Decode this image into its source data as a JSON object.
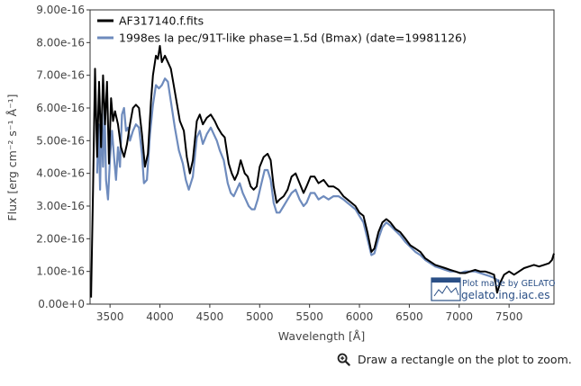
{
  "chart_data": {
    "type": "line",
    "xlabel": "Wavelength [Å]",
    "ylabel": "Flux [erg cm⁻² s⁻¹ Å⁻¹]",
    "xlim": [
      3300,
      7950
    ],
    "ylim": [
      0,
      9e-16
    ],
    "xticks": [
      3500,
      4000,
      4500,
      5000,
      5500,
      6000,
      6500,
      7000,
      7500
    ],
    "yticks": [
      0,
      1e-16,
      2e-16,
      3e-16,
      4e-16,
      5e-16,
      6e-16,
      7e-16,
      8e-16,
      9e-16
    ],
    "ytick_labels": [
      "0.00e+0",
      "1.00e-16",
      "2.00e-16",
      "3.00e-16",
      "4.00e-16",
      "5.00e-16",
      "6.00e-16",
      "7.00e-16",
      "8.00e-16",
      "9.00e-16"
    ],
    "grid": false,
    "legend_position": "top-left",
    "series": [
      {
        "name": "AF317140.f.fits",
        "color": "#000000",
        "points": [
          [
            3310,
            2e-17
          ],
          [
            3330,
            3.5e-16
          ],
          [
            3350,
            7.2e-16
          ],
          [
            3370,
            4.5e-16
          ],
          [
            3390,
            6.8e-16
          ],
          [
            3410,
            4.8e-16
          ],
          [
            3430,
            7e-16
          ],
          [
            3450,
            5.5e-16
          ],
          [
            3470,
            6.8e-16
          ],
          [
            3490,
            4.3e-16
          ],
          [
            3510,
            6.3e-16
          ],
          [
            3530,
            5.6e-16
          ],
          [
            3550,
            5.9e-16
          ],
          [
            3580,
            5.5e-16
          ],
          [
            3610,
            4.8e-16
          ],
          [
            3640,
            4.5e-16
          ],
          [
            3670,
            4.9e-16
          ],
          [
            3700,
            5.5e-16
          ],
          [
            3730,
            6e-16
          ],
          [
            3760,
            6.1e-16
          ],
          [
            3790,
            6e-16
          ],
          [
            3820,
            5.2e-16
          ],
          [
            3850,
            4.2e-16
          ],
          [
            3880,
            4.6e-16
          ],
          [
            3910,
            6.2e-16
          ],
          [
            3930,
            7e-16
          ],
          [
            3960,
            7.6e-16
          ],
          [
            3980,
            7.5e-16
          ],
          [
            4000,
            7.9e-16
          ],
          [
            4020,
            7.4e-16
          ],
          [
            4050,
            7.6e-16
          ],
          [
            4080,
            7.4e-16
          ],
          [
            4110,
            7.2e-16
          ],
          [
            4150,
            6.5e-16
          ],
          [
            4200,
            5.6e-16
          ],
          [
            4240,
            5.3e-16
          ],
          [
            4270,
            4.5e-16
          ],
          [
            4300,
            4e-16
          ],
          [
            4330,
            4.4e-16
          ],
          [
            4370,
            5.6e-16
          ],
          [
            4400,
            5.8e-16
          ],
          [
            4430,
            5.5e-16
          ],
          [
            4470,
            5.7e-16
          ],
          [
            4510,
            5.8e-16
          ],
          [
            4550,
            5.6e-16
          ],
          [
            4580,
            5.4e-16
          ],
          [
            4620,
            5.2e-16
          ],
          [
            4650,
            5.1e-16
          ],
          [
            4690,
            4.3e-16
          ],
          [
            4720,
            4e-16
          ],
          [
            4750,
            3.8e-16
          ],
          [
            4780,
            4e-16
          ],
          [
            4810,
            4.4e-16
          ],
          [
            4850,
            4e-16
          ],
          [
            4880,
            3.9e-16
          ],
          [
            4910,
            3.6e-16
          ],
          [
            4940,
            3.5e-16
          ],
          [
            4970,
            3.6e-16
          ],
          [
            5000,
            4.2e-16
          ],
          [
            5040,
            4.5e-16
          ],
          [
            5080,
            4.6e-16
          ],
          [
            5110,
            4.4e-16
          ],
          [
            5140,
            3.6e-16
          ],
          [
            5170,
            3.1e-16
          ],
          [
            5200,
            3.2e-16
          ],
          [
            5240,
            3.3e-16
          ],
          [
            5280,
            3.5e-16
          ],
          [
            5320,
            3.9e-16
          ],
          [
            5360,
            4e-16
          ],
          [
            5400,
            3.7e-16
          ],
          [
            5440,
            3.4e-16
          ],
          [
            5470,
            3.6e-16
          ],
          [
            5510,
            3.9e-16
          ],
          [
            5550,
            3.9e-16
          ],
          [
            5590,
            3.7e-16
          ],
          [
            5640,
            3.8e-16
          ],
          [
            5690,
            3.6e-16
          ],
          [
            5740,
            3.6e-16
          ],
          [
            5790,
            3.5e-16
          ],
          [
            5840,
            3.3e-16
          ],
          [
            5880,
            3.2e-16
          ],
          [
            5920,
            3.1e-16
          ],
          [
            5960,
            3e-16
          ],
          [
            6000,
            2.8e-16
          ],
          [
            6040,
            2.7e-16
          ],
          [
            6080,
            2.2e-16
          ],
          [
            6120,
            1.6e-16
          ],
          [
            6150,
            1.7e-16
          ],
          [
            6190,
            2.2e-16
          ],
          [
            6230,
            2.5e-16
          ],
          [
            6270,
            2.6e-16
          ],
          [
            6310,
            2.5e-16
          ],
          [
            6360,
            2.3e-16
          ],
          [
            6410,
            2.2e-16
          ],
          [
            6460,
            2e-16
          ],
          [
            6510,
            1.8e-16
          ],
          [
            6560,
            1.7e-16
          ],
          [
            6610,
            1.6e-16
          ],
          [
            6660,
            1.4e-16
          ],
          [
            6710,
            1.3e-16
          ],
          [
            6760,
            1.2e-16
          ],
          [
            6810,
            1.15e-16
          ],
          [
            6860,
            1.1e-16
          ],
          [
            6910,
            1.05e-16
          ],
          [
            6960,
            1e-16
          ],
          [
            7010,
            9.5e-17
          ],
          [
            7060,
            9.5e-17
          ],
          [
            7110,
            1e-16
          ],
          [
            7160,
            1.05e-16
          ],
          [
            7210,
            1e-16
          ],
          [
            7260,
            1e-16
          ],
          [
            7310,
            9.5e-17
          ],
          [
            7350,
            9e-17
          ],
          [
            7380,
            3.5e-17
          ],
          [
            7410,
            6.5e-17
          ],
          [
            7450,
            9e-17
          ],
          [
            7500,
            1e-16
          ],
          [
            7550,
            9e-17
          ],
          [
            7600,
            1e-16
          ],
          [
            7650,
            1.1e-16
          ],
          [
            7700,
            1.15e-16
          ],
          [
            7750,
            1.2e-16
          ],
          [
            7800,
            1.15e-16
          ],
          [
            7850,
            1.2e-16
          ],
          [
            7900,
            1.25e-16
          ],
          [
            7930,
            1.35e-16
          ],
          [
            7950,
            1.55e-16
          ]
        ]
      },
      {
        "name": "1998es  Ia pec/91T-like  phase=1.5d (Bmax)  (date=19981126)",
        "color": "#6e8bbd",
        "points": [
          [
            3370,
            4e-16
          ],
          [
            3385,
            5.5e-16
          ],
          [
            3400,
            3.5e-16
          ],
          [
            3415,
            5.8e-16
          ],
          [
            3430,
            4.2e-16
          ],
          [
            3445,
            6.1e-16
          ],
          [
            3460,
            3.8e-16
          ],
          [
            3480,
            3.2e-16
          ],
          [
            3500,
            4.5e-16
          ],
          [
            3520,
            5.3e-16
          ],
          [
            3540,
            4.5e-16
          ],
          [
            3560,
            3.8e-16
          ],
          [
            3580,
            4.8e-16
          ],
          [
            3600,
            4.2e-16
          ],
          [
            3620,
            5.8e-16
          ],
          [
            3640,
            6e-16
          ],
          [
            3660,
            5.3e-16
          ],
          [
            3680,
            5.4e-16
          ],
          [
            3700,
            5e-16
          ],
          [
            3730,
            5.3e-16
          ],
          [
            3760,
            5.5e-16
          ],
          [
            3790,
            5.4e-16
          ],
          [
            3820,
            4.6e-16
          ],
          [
            3840,
            3.7e-16
          ],
          [
            3870,
            3.8e-16
          ],
          [
            3900,
            5.2e-16
          ],
          [
            3930,
            6.1e-16
          ],
          [
            3960,
            6.7e-16
          ],
          [
            3990,
            6.6e-16
          ],
          [
            4020,
            6.7e-16
          ],
          [
            4050,
            6.9e-16
          ],
          [
            4080,
            6.8e-16
          ],
          [
            4110,
            6.2e-16
          ],
          [
            4150,
            5.4e-16
          ],
          [
            4190,
            4.7e-16
          ],
          [
            4230,
            4.3e-16
          ],
          [
            4260,
            3.8e-16
          ],
          [
            4290,
            3.5e-16
          ],
          [
            4330,
            3.9e-16
          ],
          [
            4370,
            5.1e-16
          ],
          [
            4400,
            5.3e-16
          ],
          [
            4430,
            4.9e-16
          ],
          [
            4470,
            5.2e-16
          ],
          [
            4510,
            5.4e-16
          ],
          [
            4540,
            5.2e-16
          ],
          [
            4570,
            5e-16
          ],
          [
            4600,
            4.7e-16
          ],
          [
            4640,
            4.4e-16
          ],
          [
            4680,
            3.7e-16
          ],
          [
            4710,
            3.4e-16
          ],
          [
            4740,
            3.3e-16
          ],
          [
            4770,
            3.5e-16
          ],
          [
            4800,
            3.7e-16
          ],
          [
            4830,
            3.4e-16
          ],
          [
            4860,
            3.2e-16
          ],
          [
            4890,
            3e-16
          ],
          [
            4920,
            2.9e-16
          ],
          [
            4950,
            2.9e-16
          ],
          [
            4980,
            3.2e-16
          ],
          [
            5010,
            3.6e-16
          ],
          [
            5050,
            4.1e-16
          ],
          [
            5080,
            4.1e-16
          ],
          [
            5110,
            3.8e-16
          ],
          [
            5140,
            3.1e-16
          ],
          [
            5170,
            2.8e-16
          ],
          [
            5200,
            2.8e-16
          ],
          [
            5240,
            3e-16
          ],
          [
            5280,
            3.2e-16
          ],
          [
            5320,
            3.4e-16
          ],
          [
            5360,
            3.5e-16
          ],
          [
            5400,
            3.2e-16
          ],
          [
            5440,
            3e-16
          ],
          [
            5470,
            3.1e-16
          ],
          [
            5510,
            3.4e-16
          ],
          [
            5550,
            3.4e-16
          ],
          [
            5590,
            3.2e-16
          ],
          [
            5640,
            3.3e-16
          ],
          [
            5690,
            3.2e-16
          ],
          [
            5740,
            3.3e-16
          ],
          [
            5790,
            3.3e-16
          ],
          [
            5840,
            3.2e-16
          ],
          [
            5880,
            3.1e-16
          ],
          [
            5920,
            3e-16
          ],
          [
            5960,
            2.9e-16
          ],
          [
            6000,
            2.7e-16
          ],
          [
            6040,
            2.5e-16
          ],
          [
            6080,
            2e-16
          ],
          [
            6120,
            1.5e-16
          ],
          [
            6150,
            1.55e-16
          ],
          [
            6190,
            2e-16
          ],
          [
            6230,
            2.35e-16
          ],
          [
            6270,
            2.5e-16
          ],
          [
            6310,
            2.4e-16
          ],
          [
            6360,
            2.25e-16
          ],
          [
            6410,
            2.1e-16
          ],
          [
            6460,
            1.9e-16
          ],
          [
            6510,
            1.75e-16
          ],
          [
            6560,
            1.6e-16
          ],
          [
            6610,
            1.5e-16
          ],
          [
            6660,
            1.35e-16
          ],
          [
            6710,
            1.25e-16
          ],
          [
            6760,
            1.15e-16
          ],
          [
            6810,
            1.1e-16
          ],
          [
            6860,
            1.05e-16
          ],
          [
            6910,
            1e-16
          ],
          [
            6960,
            1e-16
          ],
          [
            7010,
            9.5e-17
          ],
          [
            7060,
            1e-16
          ],
          [
            7110,
            1e-16
          ],
          [
            7160,
            1e-16
          ],
          [
            7210,
            9.5e-17
          ],
          [
            7260,
            9e-17
          ],
          [
            7310,
            8.5e-17
          ],
          [
            7350,
            8e-17
          ],
          [
            7400,
            7e-17
          ]
        ]
      }
    ]
  },
  "watermark": {
    "line1": "Plot made by GELATO",
    "line2": "gelato.ing.iac.es"
  },
  "zoom_hint": {
    "icon": "zoom-in-icon",
    "text": "Draw a rectangle on the plot to zoom."
  }
}
